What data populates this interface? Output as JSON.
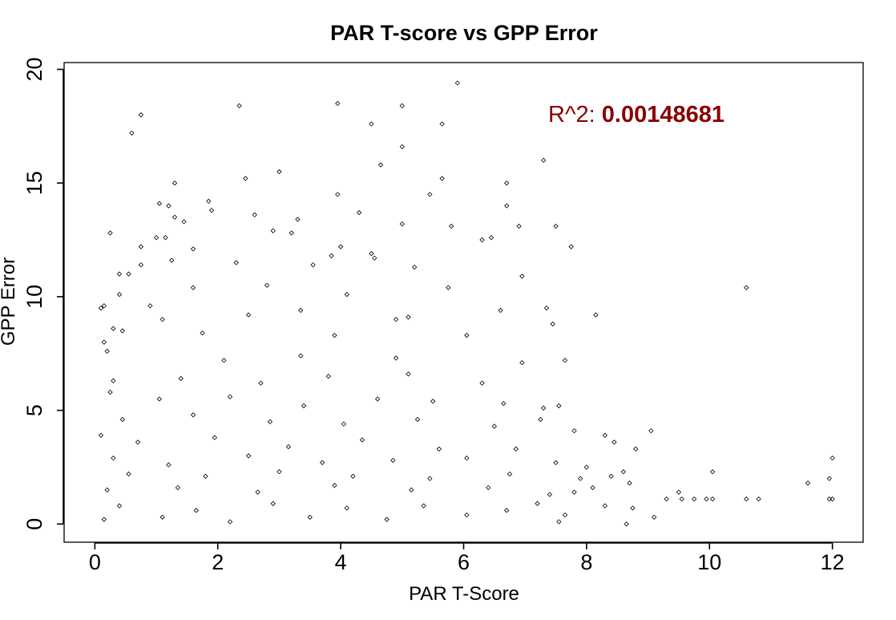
{
  "chart_data": {
    "type": "scatter",
    "title": "PAR T-score vs GPP Error",
    "xlabel": "PAR T-Score",
    "ylabel": "GPP Error",
    "xlim": [
      -0.5,
      12.5
    ],
    "ylim": [
      -0.8,
      20.3
    ],
    "x_ticks": [
      0,
      2,
      4,
      6,
      8,
      10,
      12
    ],
    "y_ticks": [
      0,
      5,
      10,
      15,
      20
    ],
    "x_tick_labels": [
      "0",
      "2",
      "4",
      "6",
      "8",
      "10",
      "12"
    ],
    "y_tick_labels": [
      "0",
      "5",
      "10",
      "15",
      "20"
    ],
    "grid": false,
    "legend": "none",
    "marker": "open-diamond",
    "annotation": {
      "prefix": "R^2: ",
      "value": "0.00148681",
      "color": "#8b0000",
      "position_data": [
        7.4,
        17.8
      ]
    },
    "points": [
      [
        5.9,
        19.4
      ],
      [
        3.95,
        18.5
      ],
      [
        5.0,
        18.4
      ],
      [
        2.35,
        18.4
      ],
      [
        0.75,
        18.0
      ],
      [
        0.6,
        17.2
      ],
      [
        4.5,
        17.6
      ],
      [
        5.65,
        17.6
      ],
      [
        5.0,
        16.6
      ],
      [
        7.3,
        16.0
      ],
      [
        4.65,
        15.8
      ],
      [
        3.0,
        15.5
      ],
      [
        1.3,
        15.0
      ],
      [
        2.45,
        15.2
      ],
      [
        5.65,
        15.2
      ],
      [
        6.7,
        15.0
      ],
      [
        5.45,
        14.5
      ],
      [
        3.95,
        14.5
      ],
      [
        1.05,
        14.1
      ],
      [
        1.85,
        14.2
      ],
      [
        6.7,
        14.0
      ],
      [
        1.2,
        14.0
      ],
      [
        1.9,
        13.8
      ],
      [
        4.3,
        13.7
      ],
      [
        2.6,
        13.6
      ],
      [
        3.3,
        13.4
      ],
      [
        1.3,
        13.5
      ],
      [
        7.5,
        13.1
      ],
      [
        6.9,
        13.1
      ],
      [
        5.0,
        13.2
      ],
      [
        5.8,
        13.1
      ],
      [
        1.45,
        13.3
      ],
      [
        0.25,
        12.8
      ],
      [
        2.9,
        12.9
      ],
      [
        3.2,
        12.8
      ],
      [
        4.0,
        12.2
      ],
      [
        6.3,
        12.5
      ],
      [
        6.45,
        12.6
      ],
      [
        1.0,
        12.6
      ],
      [
        1.15,
        12.6
      ],
      [
        0.75,
        12.2
      ],
      [
        7.75,
        12.2
      ],
      [
        1.6,
        12.1
      ],
      [
        3.85,
        11.8
      ],
      [
        4.5,
        11.9
      ],
      [
        4.55,
        11.7
      ],
      [
        2.3,
        11.5
      ],
      [
        3.55,
        11.4
      ],
      [
        0.4,
        11.0
      ],
      [
        1.25,
        11.6
      ],
      [
        5.2,
        11.3
      ],
      [
        0.55,
        11.0
      ],
      [
        0.75,
        11.4
      ],
      [
        6.95,
        10.9
      ],
      [
        1.6,
        10.4
      ],
      [
        2.8,
        10.5
      ],
      [
        0.4,
        10.1
      ],
      [
        4.1,
        10.1
      ],
      [
        10.6,
        10.4
      ],
      [
        5.75,
        10.4
      ],
      [
        0.1,
        9.5
      ],
      [
        0.15,
        9.6
      ],
      [
        7.35,
        9.5
      ],
      [
        0.9,
        9.6
      ],
      [
        3.35,
        9.4
      ],
      [
        6.6,
        9.4
      ],
      [
        8.15,
        9.2
      ],
      [
        7.45,
        8.8
      ],
      [
        2.5,
        9.2
      ],
      [
        4.9,
        9.0
      ],
      [
        5.1,
        9.1
      ],
      [
        1.1,
        9.0
      ],
      [
        0.3,
        8.6
      ],
      [
        0.45,
        8.5
      ],
      [
        1.75,
        8.4
      ],
      [
        3.9,
        8.3
      ],
      [
        6.05,
        8.3
      ],
      [
        0.15,
        8.0
      ],
      [
        0.2,
        7.6
      ],
      [
        2.1,
        7.2
      ],
      [
        3.35,
        7.4
      ],
      [
        4.9,
        7.3
      ],
      [
        6.95,
        7.1
      ],
      [
        7.65,
        7.2
      ],
      [
        0.3,
        6.3
      ],
      [
        1.4,
        6.4
      ],
      [
        2.7,
        6.2
      ],
      [
        3.8,
        6.5
      ],
      [
        5.1,
        6.6
      ],
      [
        6.3,
        6.2
      ],
      [
        0.25,
        5.8
      ],
      [
        1.05,
        5.5
      ],
      [
        2.2,
        5.6
      ],
      [
        3.4,
        5.2
      ],
      [
        4.6,
        5.5
      ],
      [
        5.5,
        5.4
      ],
      [
        6.65,
        5.3
      ],
      [
        7.3,
        5.1
      ],
      [
        7.55,
        5.2
      ],
      [
        0.45,
        4.6
      ],
      [
        1.6,
        4.8
      ],
      [
        2.85,
        4.5
      ],
      [
        4.05,
        4.4
      ],
      [
        5.25,
        4.6
      ],
      [
        6.5,
        4.3
      ],
      [
        7.25,
        4.6
      ],
      [
        7.8,
        4.1
      ],
      [
        0.1,
        3.9
      ],
      [
        0.7,
        3.6
      ],
      [
        1.95,
        3.8
      ],
      [
        3.15,
        3.4
      ],
      [
        4.35,
        3.7
      ],
      [
        5.6,
        3.3
      ],
      [
        6.85,
        3.3
      ],
      [
        8.3,
        3.9
      ],
      [
        8.45,
        3.6
      ],
      [
        8.8,
        3.3
      ],
      [
        9.05,
        4.1
      ],
      [
        0.3,
        2.9
      ],
      [
        1.2,
        2.6
      ],
      [
        2.5,
        3.0
      ],
      [
        3.7,
        2.7
      ],
      [
        4.85,
        2.8
      ],
      [
        6.05,
        2.9
      ],
      [
        7.5,
        2.7
      ],
      [
        8.0,
        2.5
      ],
      [
        8.6,
        2.3
      ],
      [
        0.55,
        2.2
      ],
      [
        1.8,
        2.1
      ],
      [
        3.0,
        2.3
      ],
      [
        4.2,
        2.1
      ],
      [
        5.45,
        2.0
      ],
      [
        6.75,
        2.2
      ],
      [
        7.9,
        2.0
      ],
      [
        8.4,
        2.1
      ],
      [
        10.05,
        2.3
      ],
      [
        11.95,
        2.0
      ],
      [
        12.0,
        2.9
      ],
      [
        11.6,
        1.8
      ],
      [
        0.2,
        1.5
      ],
      [
        1.35,
        1.6
      ],
      [
        2.65,
        1.4
      ],
      [
        3.9,
        1.7
      ],
      [
        5.15,
        1.5
      ],
      [
        6.4,
        1.6
      ],
      [
        7.4,
        1.3
      ],
      [
        7.8,
        1.4
      ],
      [
        8.1,
        1.6
      ],
      [
        8.7,
        1.8
      ],
      [
        9.5,
        1.4
      ],
      [
        0.4,
        0.8
      ],
      [
        1.65,
        0.6
      ],
      [
        2.9,
        0.9
      ],
      [
        4.1,
        0.7
      ],
      [
        5.35,
        0.8
      ],
      [
        6.7,
        0.6
      ],
      [
        7.2,
        0.9
      ],
      [
        7.65,
        0.4
      ],
      [
        8.3,
        0.8
      ],
      [
        8.75,
        0.7
      ],
      [
        9.1,
        0.3
      ],
      [
        0.15,
        0.2
      ],
      [
        1.1,
        0.3
      ],
      [
        2.2,
        0.1
      ],
      [
        3.5,
        0.3
      ],
      [
        4.75,
        0.2
      ],
      [
        6.05,
        0.4
      ],
      [
        7.55,
        0.1
      ],
      [
        8.65,
        0.0
      ],
      [
        9.3,
        1.1
      ],
      [
        9.55,
        1.1
      ],
      [
        9.75,
        1.1
      ],
      [
        9.95,
        1.1
      ],
      [
        10.05,
        1.1
      ],
      [
        10.6,
        1.1
      ],
      [
        10.8,
        1.1
      ],
      [
        11.95,
        1.1
      ],
      [
        12.0,
        1.1
      ]
    ]
  }
}
